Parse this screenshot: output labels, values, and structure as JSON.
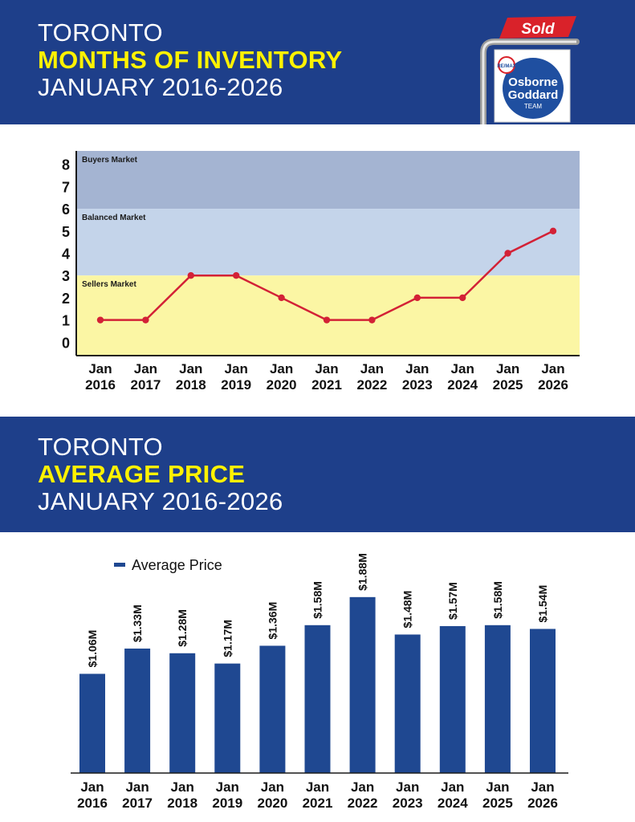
{
  "header_inventory": {
    "city": "TORONTO",
    "metric": "MONTHS OF INVENTORY",
    "period": "JANUARY 2016-2026"
  },
  "header_price": {
    "city": "TORONTO",
    "metric": "AVERAGE PRICE",
    "period": "JANUARY 2016-2026"
  },
  "logo": {
    "sign_text": "Sold",
    "brand": "RE/MAX",
    "name_line1": "Osborne",
    "name_line2": "Goddard",
    "name_line3": "TEAM"
  },
  "colors": {
    "banner": "#1e3f8a",
    "highlight": "#fff200",
    "line": "#d32136",
    "bar": "#1f4891",
    "buyers_zone": "#a4b4d2",
    "balanced_zone": "#c4d4ea",
    "sellers_zone": "#fbf6a4"
  },
  "chart_data": [
    {
      "type": "line",
      "x": [
        "Jan 2016",
        "Jan 2017",
        "Jan 2018",
        "Jan 2019",
        "Jan 2020",
        "Jan 2021",
        "Jan 2022",
        "Jan 2023",
        "Jan 2024",
        "Jan 2025",
        "Jan 2026"
      ],
      "x_month": [
        "Jan",
        "Jan",
        "Jan",
        "Jan",
        "Jan",
        "Jan",
        "Jan",
        "Jan",
        "Jan",
        "Jan",
        "Jan"
      ],
      "x_year": [
        "2016",
        "2017",
        "2018",
        "2019",
        "2020",
        "2021",
        "2022",
        "2023",
        "2024",
        "2025",
        "2026"
      ],
      "series": [
        {
          "values": [
            1,
            1,
            3,
            3,
            2,
            1,
            1,
            2,
            2,
            4,
            5
          ]
        }
      ],
      "yticks": [
        0,
        1,
        2,
        3,
        4,
        5,
        6,
        7,
        8
      ],
      "ylim": [
        -0.6,
        8.6
      ],
      "zones": [
        {
          "label": "Buyers Market",
          "from": 6,
          "to": 8.6
        },
        {
          "label": "Balanced Market",
          "from": 3,
          "to": 6
        },
        {
          "label": "Sellers Market",
          "from": -0.6,
          "to": 3
        }
      ],
      "grid": false
    },
    {
      "type": "bar",
      "categories": [
        "Jan 2016",
        "Jan 2017",
        "Jan 2018",
        "Jan 2019",
        "Jan 2020",
        "Jan 2021",
        "Jan 2022",
        "Jan 2023",
        "Jan 2024",
        "Jan 2025",
        "Jan 2026"
      ],
      "x_month": [
        "Jan",
        "Jan",
        "Jan",
        "Jan",
        "Jan",
        "Jan",
        "Jan",
        "Jan",
        "Jan",
        "Jan",
        "Jan"
      ],
      "x_year": [
        "2016",
        "2017",
        "2018",
        "2019",
        "2020",
        "2021",
        "2022",
        "2023",
        "2024",
        "2025",
        "2026"
      ],
      "series": [
        {
          "name": "Average Price",
          "values": [
            1.06,
            1.33,
            1.28,
            1.17,
            1.36,
            1.58,
            1.88,
            1.48,
            1.57,
            1.58,
            1.54
          ],
          "labels": [
            "$1.06M",
            "$1.33M",
            "$1.28M",
            "$1.17M",
            "$1.36M",
            "$1.58M",
            "$1.88M",
            "$1.48M",
            "$1.57M",
            "$1.58M",
            "$1.54M"
          ]
        }
      ],
      "ylim": [
        0,
        1.93
      ],
      "legend": "top-left",
      "grid": false
    }
  ]
}
